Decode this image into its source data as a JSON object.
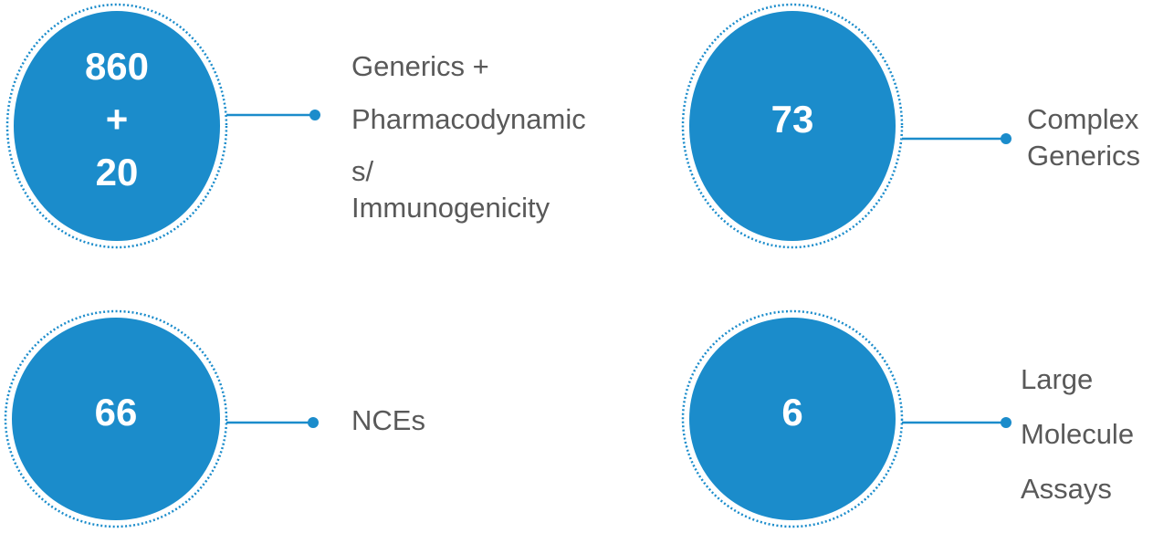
{
  "items": [
    {
      "number_lines": [
        "860",
        "+",
        "20"
      ],
      "label_lines": [
        "Generics +",
        "Pharmacodynamic",
        "s/",
        "Immunogenicity"
      ]
    },
    {
      "number_lines": [
        "73"
      ],
      "label_lines": [
        "Complex",
        "Generics"
      ]
    },
    {
      "number_lines": [
        "66"
      ],
      "label_lines": [
        "NCEs"
      ]
    },
    {
      "number_lines": [
        "6"
      ],
      "label_lines": [
        "Large",
        "Molecule",
        "Assays"
      ]
    }
  ]
}
